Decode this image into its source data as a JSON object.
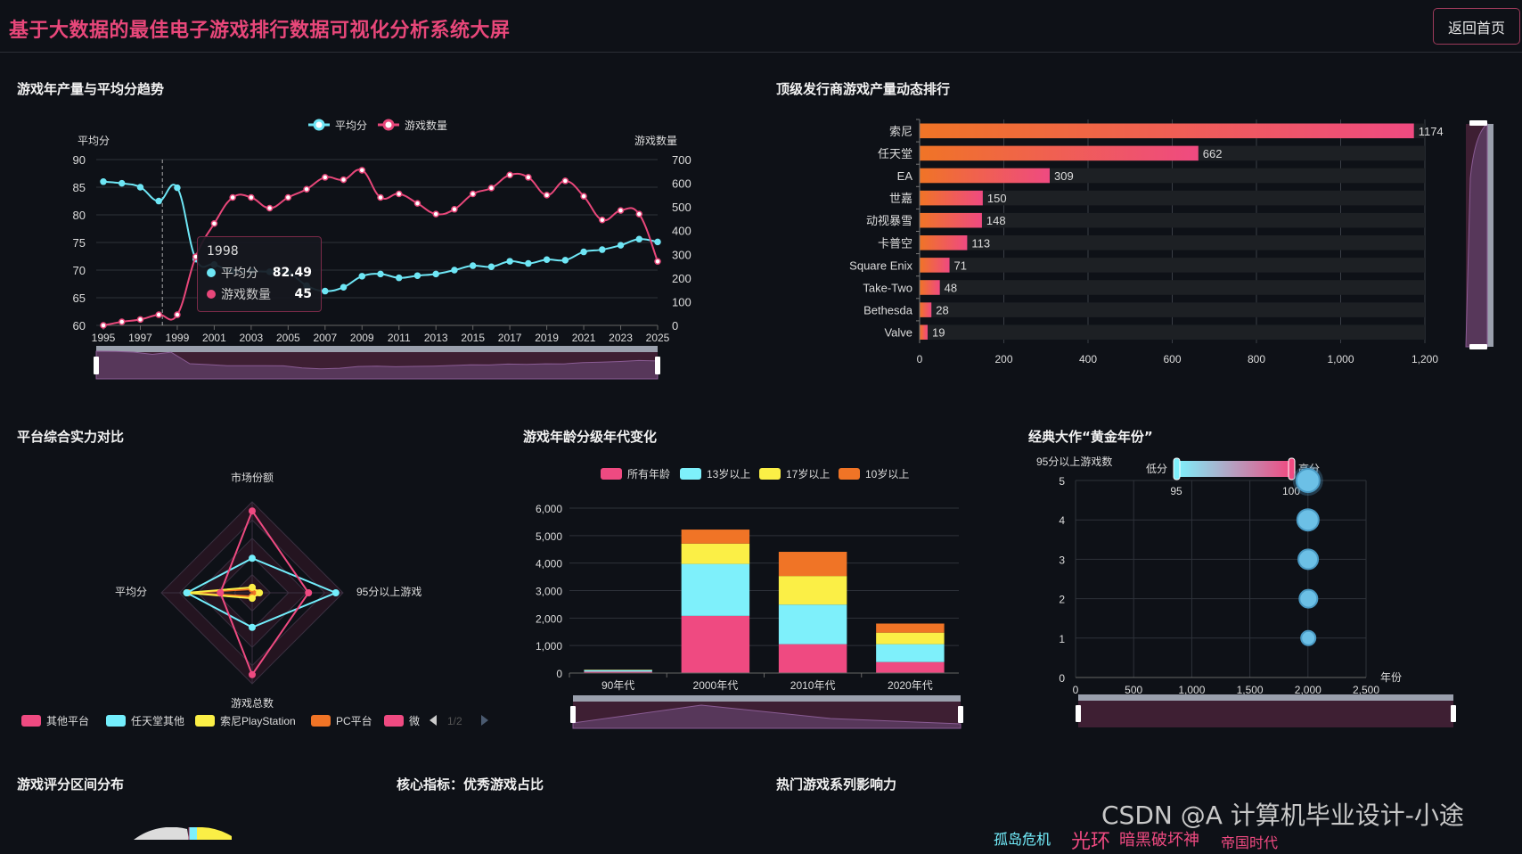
{
  "header": {
    "title": "基于大数据的最佳电子游戏排行数据可视化分析系统大屏",
    "home_button": "返回首页"
  },
  "panels": {
    "trend": "游戏年产量与平均分趋势",
    "publisher": "顶级发行商游戏产量动态排行",
    "radar": "平台综合实力对比",
    "age": "游戏年龄分级年代变化",
    "golden": "经典大作“黄金年份”",
    "score_dist": "游戏评分区间分布",
    "core": "核心指标：优秀游戏占比",
    "series": "热门游戏系列影响力"
  },
  "tooltip": {
    "year": "1998",
    "rows": [
      {
        "label": "平均分",
        "value": "82.49",
        "color": "#6ee6f5"
      },
      {
        "label": "游戏数量",
        "value": "45",
        "color": "#e8477a"
      }
    ]
  },
  "radar_legend": {
    "items": [
      {
        "label": "其他平台",
        "color": "#ef4a81"
      },
      {
        "label": "任天堂其他",
        "color": "#73eefc"
      },
      {
        "label": "索尼PlayStation",
        "color": "#fbef46"
      },
      {
        "label": "PC平台",
        "color": "#f07426"
      },
      {
        "label": "微",
        "color": "#ef4a81"
      }
    ],
    "page": "1/2"
  },
  "wordcloud": [
    {
      "text": "孤岛危机",
      "color": "#73eefc"
    },
    {
      "text": "光环",
      "color": "#ef4a81"
    },
    {
      "text": "暗黑破坏神",
      "color": "#ef4a81"
    },
    {
      "text": "帝国时代",
      "color": "#ef4a81"
    }
  ],
  "watermark": "CSDN @A 计算机毕业设计-小途",
  "chart_data": [
    {
      "type": "line",
      "title": "游戏年产量与平均分趋势",
      "x": [
        1995,
        1996,
        1997,
        1998,
        1999,
        2000,
        2001,
        2002,
        2003,
        2004,
        2005,
        2006,
        2007,
        2008,
        2009,
        2010,
        2011,
        2012,
        2013,
        2014,
        2015,
        2016,
        2017,
        2018,
        2019,
        2020,
        2021,
        2022,
        2023,
        2024,
        2025
      ],
      "x_ticks": [
        "1995",
        "1997",
        "1999",
        "2001",
        "2003",
        "2005",
        "2007",
        "2009",
        "2011",
        "2013",
        "2015",
        "2017",
        "2019",
        "2021",
        "2023",
        "2025"
      ],
      "series": [
        {
          "name": "平均分",
          "axis": "left",
          "color": "#6ee6f5",
          "values": [
            86.0,
            85.7,
            85.0,
            82.49,
            84.9,
            72.0,
            71.0,
            69.8,
            69.8,
            69.7,
            69.6,
            67.2,
            66.2,
            66.9,
            68.9,
            69.3,
            68.6,
            69.0,
            69.3,
            70.0,
            70.8,
            70.6,
            71.6,
            71.2,
            71.9,
            71.8,
            73.3,
            73.7,
            74.5,
            75.6,
            75.1
          ]
        },
        {
          "name": "游戏数量",
          "axis": "right",
          "color": "#e8477a",
          "values": [
            0,
            15,
            25,
            45,
            45,
            290,
            430,
            540,
            540,
            495,
            540,
            575,
            625,
            615,
            655,
            540,
            555,
            515,
            470,
            490,
            555,
            580,
            635,
            625,
            550,
            610,
            545,
            445,
            485,
            470,
            270
          ]
        }
      ],
      "ylabel_left": "平均分",
      "ylim_left": [
        60,
        90
      ],
      "yticks_left": [
        60,
        65,
        70,
        75,
        80,
        85,
        90
      ],
      "ylabel_right": "游戏数量",
      "ylim_right": [
        0,
        700
      ],
      "yticks_right": [
        0,
        100,
        200,
        300,
        400,
        500,
        600,
        700
      ],
      "legend": [
        "平均分",
        "游戏数量"
      ],
      "legend_position": "top",
      "grid": true
    },
    {
      "type": "bar",
      "orientation": "horizontal",
      "title": "顶级发行商游戏产量动态排行",
      "categories": [
        "索尼",
        "任天堂",
        "EA",
        "世嘉",
        "动视暴雪",
        "卡普空",
        "Square Enix",
        "Take-Two",
        "Bethesda",
        "Valve"
      ],
      "values": [
        1174,
        662,
        309,
        150,
        148,
        113,
        71,
        48,
        28,
        19
      ],
      "xlim": [
        0,
        1200
      ],
      "xticks": [
        "0",
        "200",
        "400",
        "600",
        "800",
        "1,000",
        "1,200"
      ],
      "grid": true
    },
    {
      "type": "radar",
      "title": "平台综合实力对比",
      "indicators": [
        "市场份额",
        "95分以上游戏",
        "游戏总数",
        "平均分"
      ],
      "series": [
        {
          "name": "其他平台",
          "color": "#ef4a81",
          "values": [
            0.9,
            0.62,
            0.9,
            0.35
          ]
        },
        {
          "name": "任天堂其他",
          "color": "#73eefc",
          "values": [
            0.38,
            0.92,
            0.38,
            0.72
          ]
        },
        {
          "name": "索尼PlayStation",
          "color": "#fbef46",
          "values": [
            0.06,
            0.08,
            0.06,
            0.72
          ]
        },
        {
          "name": "PC平台",
          "color": "#f07426",
          "values": [
            0.04,
            0.05,
            0.04,
            0.7
          ]
        }
      ],
      "legend_position": "bottom"
    },
    {
      "type": "bar",
      "stacked": true,
      "title": "游戏年龄分级年代变化",
      "categories": [
        "90年代",
        "2000年代",
        "2010年代",
        "2020年代"
      ],
      "series": [
        {
          "name": "所有年龄",
          "color": "#ef4a81",
          "values": [
            50,
            2080,
            1050,
            400
          ]
        },
        {
          "name": "13岁以上",
          "color": "#7ef0fb",
          "values": [
            60,
            1890,
            1440,
            650
          ]
        },
        {
          "name": "17岁以上",
          "color": "#fbef46",
          "values": [
            10,
            740,
            1040,
            420
          ]
        },
        {
          "name": "10岁以上",
          "color": "#f07426",
          "values": [
            5,
            510,
            880,
            330
          ]
        }
      ],
      "ylim": [
        0,
        6000
      ],
      "yticks": [
        "0",
        "1,000",
        "2,000",
        "3,000",
        "4,000",
        "5,000",
        "6,000"
      ],
      "legend_position": "top",
      "grid": true
    },
    {
      "type": "scatter",
      "title": "经典大作“黄金年份”",
      "xlabel": "年份",
      "ylabel": "95分以上游戏数",
      "xlim": [
        0,
        2500
      ],
      "xticks": [
        "0",
        "500",
        "1,000",
        "1,500",
        "2,000",
        "2,500"
      ],
      "ylim": [
        0,
        5
      ],
      "yticks": [
        "0",
        "1",
        "2",
        "3",
        "4",
        "5"
      ],
      "points": [
        {
          "x": 2000,
          "y": 5
        },
        {
          "x": 2000,
          "y": 4
        },
        {
          "x": 2002,
          "y": 3
        },
        {
          "x": 2004,
          "y": 2
        },
        {
          "x": 2003,
          "y": 1
        }
      ],
      "visual_map": {
        "low_label": "低分",
        "high_label": "高分",
        "min": "95",
        "max": "100"
      },
      "grid": true
    }
  ]
}
